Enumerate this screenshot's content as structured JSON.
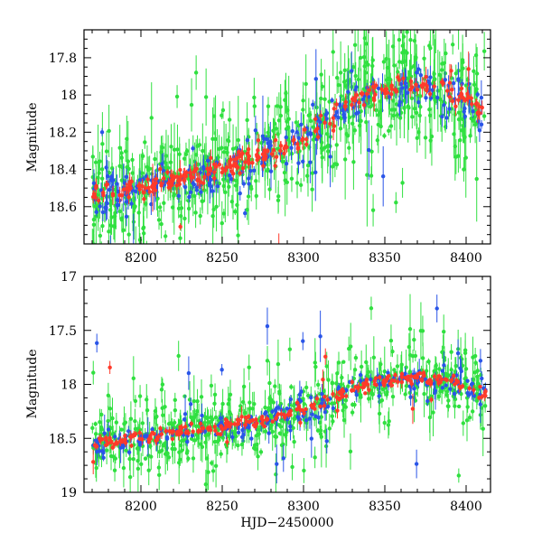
{
  "chart_data": [
    {
      "type": "scatter",
      "panel": "top",
      "title": "",
      "xlabel": "",
      "ylabel": "Magnitude",
      "xlim": [
        8165,
        8415
      ],
      "ylim": [
        18.8,
        17.65
      ],
      "y_inverted": true,
      "xticks": [
        8200,
        8250,
        8300,
        8350,
        8400
      ],
      "xtick_labels": [
        "8200",
        "8250",
        "8300",
        "8350",
        "8400"
      ],
      "yticks": [
        17.8,
        18,
        18.2,
        18.4,
        18.6
      ],
      "ytick_labels": [
        "17.8",
        "18",
        "18.2",
        "18.4",
        "18.6"
      ],
      "trend": {
        "x": [
          8170,
          8200,
          8230,
          8260,
          8290,
          8310,
          8330,
          8350,
          8370,
          8385,
          8395,
          8405,
          8412
        ],
        "y": [
          18.55,
          18.5,
          18.44,
          18.37,
          18.28,
          18.17,
          18.04,
          17.96,
          17.95,
          17.96,
          17.99,
          18.05,
          18.1
        ]
      },
      "series": [
        {
          "color": "#ff3a2a",
          "scatter_sigma": 0.03
        },
        {
          "color": "#2a55e8",
          "scatter_sigma": 0.06
        },
        {
          "color": "#30e040",
          "scatter_sigma": 0.12
        }
      ],
      "legend": "none",
      "grid": false
    },
    {
      "type": "scatter",
      "panel": "bottom",
      "title": "",
      "xlabel": "HJD−2450000",
      "ylabel": "Magnitude",
      "xlim": [
        8165,
        8415
      ],
      "ylim": [
        19,
        17
      ],
      "y_inverted": true,
      "xticks": [
        8200,
        8250,
        8300,
        8350,
        8400
      ],
      "xtick_labels": [
        "8200",
        "8250",
        "8300",
        "8350",
        "8400"
      ],
      "yticks": [
        17,
        17.5,
        18,
        18.5,
        19
      ],
      "ytick_labels": [
        "17",
        "17.5",
        "18",
        "18.5",
        "19"
      ],
      "trend": {
        "x": [
          8170,
          8200,
          8230,
          8260,
          8290,
          8310,
          8330,
          8350,
          8370,
          8385,
          8395,
          8405,
          8412
        ],
        "y": [
          18.55,
          18.5,
          18.44,
          18.37,
          18.28,
          18.17,
          18.04,
          17.96,
          17.95,
          17.96,
          17.99,
          18.05,
          18.1
        ]
      },
      "series": [
        {
          "color": "#ff3a2a",
          "scatter_sigma": 0.03
        },
        {
          "color": "#2a55e8",
          "scatter_sigma": 0.06
        },
        {
          "color": "#30e040",
          "scatter_sigma": 0.12
        }
      ],
      "legend": "none",
      "grid": false
    }
  ]
}
